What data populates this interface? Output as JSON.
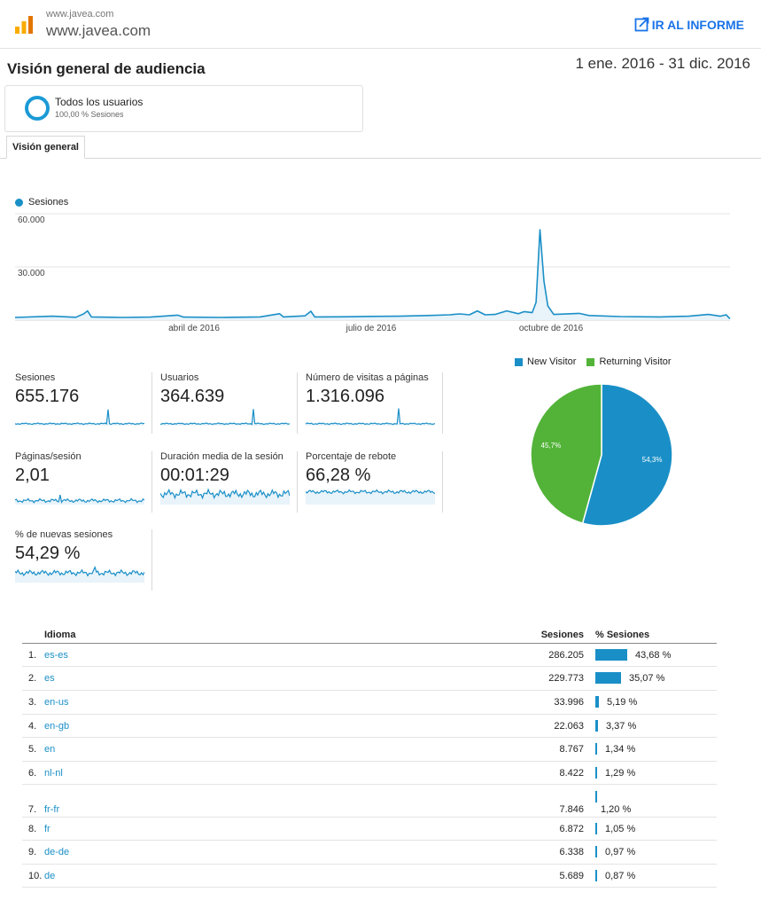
{
  "header": {
    "site_small": "www.javea.com",
    "site_big": "www.javea.com",
    "report_link": "IR AL INFORME"
  },
  "page": {
    "title": "Visión general de audiencia",
    "date_range": "1 ene. 2016 - 31 dic. 2016"
  },
  "segment": {
    "name": "Todos los usuarios",
    "pct": "100,00 % Sesiones"
  },
  "tabs": [
    {
      "label": "Visión general"
    }
  ],
  "colors": {
    "primary": "#1a8fc7",
    "returning": "#52b338",
    "link": "#1a73e8"
  },
  "chart_data": [
    {
      "type": "line",
      "legend": [
        "Sesiones"
      ],
      "y_ticks": [
        "60.000",
        "30.000"
      ],
      "x_ticks": [
        "abril de 2016",
        "julio de 2016",
        "octubre de 2016"
      ],
      "ylim": [
        0,
        60000
      ],
      "xlim": [
        "2016-01-01",
        "2016-12-31"
      ],
      "grid": true,
      "series": [
        {
          "name": "Sesiones",
          "points": [
            [
              "2016-01-01",
              1500
            ],
            [
              "2016-01-20",
              2200
            ],
            [
              "2016-02-01",
              1600
            ],
            [
              "2016-02-05",
              3500
            ],
            [
              "2016-02-07",
              5200
            ],
            [
              "2016-02-09",
              1800
            ],
            [
              "2016-02-25",
              1500
            ],
            [
              "2016-03-10",
              1700
            ],
            [
              "2016-03-24",
              2800
            ],
            [
              "2016-03-27",
              1700
            ],
            [
              "2016-04-15",
              1500
            ],
            [
              "2016-05-05",
              1800
            ],
            [
              "2016-05-15",
              3600
            ],
            [
              "2016-05-17",
              1800
            ],
            [
              "2016-05-28",
              2400
            ],
            [
              "2016-05-31",
              5000
            ],
            [
              "2016-06-02",
              1800
            ],
            [
              "2016-06-20",
              1900
            ],
            [
              "2016-07-01",
              2100
            ],
            [
              "2016-07-15",
              2200
            ],
            [
              "2016-07-30",
              2600
            ],
            [
              "2016-08-10",
              3000
            ],
            [
              "2016-08-15",
              3500
            ],
            [
              "2016-08-20",
              3000
            ],
            [
              "2016-08-24",
              5200
            ],
            [
              "2016-08-28",
              3000
            ],
            [
              "2016-09-02",
              3200
            ],
            [
              "2016-09-08",
              5200
            ],
            [
              "2016-09-14",
              3600
            ],
            [
              "2016-09-17",
              4800
            ],
            [
              "2016-09-21",
              4200
            ],
            [
              "2016-09-23",
              10000
            ],
            [
              "2016-09-25",
              51000
            ],
            [
              "2016-09-27",
              22000
            ],
            [
              "2016-09-29",
              8000
            ],
            [
              "2016-10-02",
              3200
            ],
            [
              "2016-10-15",
              3800
            ],
            [
              "2016-10-20",
              2600
            ],
            [
              "2016-11-05",
              2000
            ],
            [
              "2016-11-25",
              1800
            ],
            [
              "2016-12-10",
              2200
            ],
            [
              "2016-12-20",
              3200
            ],
            [
              "2016-12-26",
              2200
            ],
            [
              "2016-12-29",
              3000
            ],
            [
              "2016-12-31",
              800
            ]
          ]
        }
      ]
    },
    {
      "type": "pie",
      "legend": [
        "New Visitor",
        "Returning Visitor"
      ],
      "slices": [
        {
          "label": "New Visitor",
          "value": 54.3,
          "text": "54,3%",
          "color": "#1a8fc7"
        },
        {
          "label": "Returning Visitor",
          "value": 45.7,
          "text": "45,7%",
          "color": "#52b338"
        }
      ]
    }
  ],
  "metrics": [
    {
      "label": "Sesiones",
      "value": "655.176"
    },
    {
      "label": "Usuarios",
      "value": "364.639"
    },
    {
      "label": "Número de visitas a páginas",
      "value": "1.316.096"
    },
    {
      "label": "Páginas/sesión",
      "value": "2,01"
    },
    {
      "label": "Duración media de la sesión",
      "value": "00:01:29"
    },
    {
      "label": "Porcentaje de rebote",
      "value": "66,28 %"
    },
    {
      "label": "% de nuevas sesiones",
      "value": "54,29 %"
    }
  ],
  "table": {
    "headers": {
      "language": "Idioma",
      "sessions": "Sesiones",
      "pct": "% Sesiones"
    },
    "rows": [
      {
        "n": "1.",
        "lang": "es-es",
        "sessions": "286.205",
        "pct": "43,68 %",
        "pct_value": 43.68
      },
      {
        "n": "2.",
        "lang": "es",
        "sessions": "229.773",
        "pct": "35,07 %",
        "pct_value": 35.07
      },
      {
        "n": "3.",
        "lang": "en-us",
        "sessions": "33.996",
        "pct": "5,19 %",
        "pct_value": 5.19
      },
      {
        "n": "4.",
        "lang": "en-gb",
        "sessions": "22.063",
        "pct": "3,37 %",
        "pct_value": 3.37
      },
      {
        "n": "5.",
        "lang": "en",
        "sessions": "8.767",
        "pct": "1,34 %",
        "pct_value": 1.34
      },
      {
        "n": "6.",
        "lang": "nl-nl",
        "sessions": "8.422",
        "pct": "1,29 %",
        "pct_value": 1.29
      },
      {
        "n": "7.",
        "lang": "fr-fr",
        "sessions": "7.846",
        "pct": "1,20 %",
        "pct_value": 1.2
      },
      {
        "n": "8.",
        "lang": "fr",
        "sessions": "6.872",
        "pct": "1,05 %",
        "pct_value": 1.05
      },
      {
        "n": "9.",
        "lang": "de-de",
        "sessions": "6.338",
        "pct": "0,97 %",
        "pct_value": 0.97
      },
      {
        "n": "10.",
        "lang": "de",
        "sessions": "5.689",
        "pct": "0,87 %",
        "pct_value": 0.87
      }
    ]
  }
}
